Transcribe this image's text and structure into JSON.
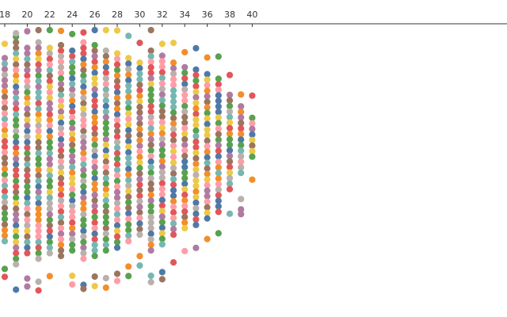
{
  "chart_data": {
    "type": "scatter",
    "subtype": "dot-strip",
    "x_axis": {
      "position": "top",
      "ticks": [
        18,
        20,
        22,
        24,
        26,
        28,
        30,
        32,
        34,
        36,
        38,
        40
      ],
      "tick_labels": [
        "18",
        "20",
        "22",
        "24",
        "26",
        "28",
        "30",
        "32",
        "34",
        "36",
        "38",
        "40"
      ]
    },
    "grid": false,
    "palette": [
      "#4e79a7",
      "#f28e2b",
      "#e15759",
      "#76b7b2",
      "#59a14f",
      "#edc948",
      "#b07aa1",
      "#ff9da7",
      "#9c755f",
      "#bab0ac"
    ],
    "columns": [
      {
        "x": 18,
        "main_count": 34,
        "outliers": 3
      },
      {
        "x": 19,
        "main_count": 42,
        "outliers": 2
      },
      {
        "x": 20,
        "main_count": 38,
        "outliers": 3
      },
      {
        "x": 21,
        "main_count": 40,
        "outliers": 3
      },
      {
        "x": 22,
        "main_count": 38,
        "outliers": 2
      },
      {
        "x": 23,
        "main_count": 39,
        "outliers": 1
      },
      {
        "x": 24,
        "main_count": 37,
        "outliers": 3
      },
      {
        "x": 25,
        "main_count": 40,
        "outliers": 3
      },
      {
        "x": 26,
        "main_count": 39,
        "outliers": 3
      },
      {
        "x": 27,
        "main_count": 37,
        "outliers": 3
      },
      {
        "x": 28,
        "main_count": 36,
        "outliers": 3
      },
      {
        "x": 29,
        "main_count": 34,
        "outliers": 3
      },
      {
        "x": 30,
        "main_count": 32,
        "outliers": 3
      },
      {
        "x": 31,
        "main_count": 37,
        "outliers": 3
      },
      {
        "x": 32,
        "main_count": 35,
        "outliers": 3
      },
      {
        "x": 33,
        "main_count": 32,
        "outliers": 2
      },
      {
        "x": 34,
        "main_count": 30,
        "outliers": 2
      },
      {
        "x": 35,
        "main_count": 29,
        "outliers": 2
      },
      {
        "x": 36,
        "main_count": 27,
        "outliers": 2
      },
      {
        "x": 37,
        "main_count": 25,
        "outliers": 2
      },
      {
        "x": 38,
        "main_count": 18,
        "outliers": 2
      },
      {
        "x": 39,
        "main_count": 13,
        "outliers": 4
      },
      {
        "x": 40,
        "main_count": 8,
        "outliers": 2
      }
    ]
  }
}
